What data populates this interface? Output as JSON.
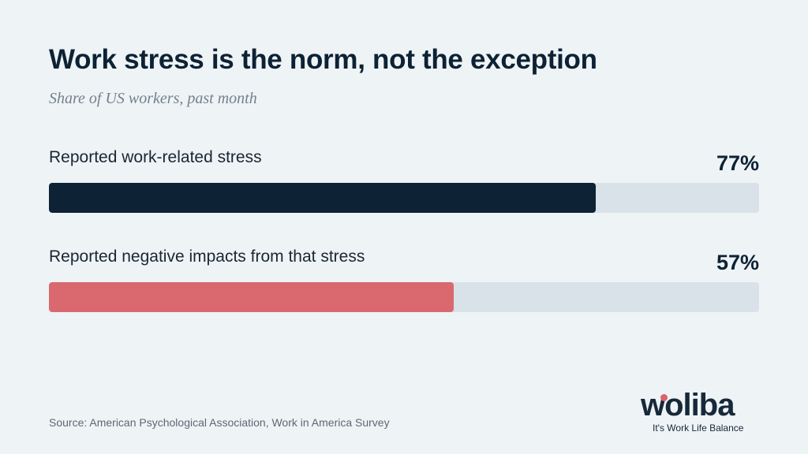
{
  "chart_data": {
    "type": "bar",
    "orientation": "horizontal",
    "title": "Work stress is the norm, not the exception",
    "subtitle": "Share of US workers, past month",
    "categories": [
      "Reported work-related stress",
      "Reported negative impacts from that stress"
    ],
    "values": [
      77,
      57
    ],
    "value_labels": [
      "77%",
      "57%"
    ],
    "xlim": [
      0,
      100
    ],
    "colors": [
      "#0d2234",
      "#d9696f"
    ],
    "track_color": "#d9e2e8",
    "grid": false
  },
  "footer": {
    "source": "Source: American Psychological Association, Work in America Survey"
  },
  "logo": {
    "wordmark": "woliba",
    "tagline": "It's Work Life Balance",
    "accent_color": "#d9646c"
  }
}
